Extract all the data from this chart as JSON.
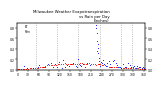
{
  "title": "Milwaukee Weather Evapotranspiration\nvs Rain per Day\n(Inches)",
  "title_fontsize": 2.8,
  "background_color": "#ffffff",
  "xlim": [
    0,
    365
  ],
  "ylim": [
    0,
    0.9
  ],
  "vline_positions": [
    52,
    113,
    174,
    235,
    296,
    327
  ],
  "legend_labels": [
    "ET",
    "Rain"
  ],
  "legend_colors": [
    "red",
    "blue"
  ],
  "et_data": [
    [
      1,
      0.02
    ],
    [
      3,
      0.02
    ],
    [
      6,
      0.02
    ],
    [
      10,
      0.02
    ],
    [
      15,
      0.02
    ],
    [
      20,
      0.02
    ],
    [
      25,
      0.02
    ],
    [
      30,
      0.02
    ],
    [
      35,
      0.03
    ],
    [
      40,
      0.03
    ],
    [
      45,
      0.03
    ],
    [
      50,
      0.03
    ],
    [
      55,
      0.04
    ],
    [
      60,
      0.04
    ],
    [
      65,
      0.05
    ],
    [
      70,
      0.05
    ],
    [
      75,
      0.06
    ],
    [
      80,
      0.07
    ],
    [
      85,
      0.08
    ],
    [
      90,
      0.09
    ],
    [
      95,
      0.09
    ],
    [
      100,
      0.08
    ],
    [
      105,
      0.09
    ],
    [
      110,
      0.09
    ],
    [
      115,
      0.1
    ],
    [
      120,
      0.1
    ],
    [
      125,
      0.11
    ],
    [
      130,
      0.11
    ],
    [
      135,
      0.12
    ],
    [
      140,
      0.11
    ],
    [
      145,
      0.1
    ],
    [
      150,
      0.1
    ],
    [
      155,
      0.1
    ],
    [
      160,
      0.1
    ],
    [
      165,
      0.11
    ],
    [
      170,
      0.11
    ],
    [
      175,
      0.11
    ],
    [
      180,
      0.12
    ],
    [
      185,
      0.12
    ],
    [
      190,
      0.11
    ],
    [
      195,
      0.11
    ],
    [
      200,
      0.11
    ],
    [
      205,
      0.12
    ],
    [
      210,
      0.11
    ],
    [
      215,
      0.1
    ],
    [
      220,
      0.1
    ],
    [
      225,
      0.09
    ],
    [
      230,
      0.11
    ],
    [
      235,
      0.1
    ],
    [
      240,
      0.09
    ],
    [
      245,
      0.09
    ],
    [
      250,
      0.08
    ],
    [
      255,
      0.07
    ],
    [
      260,
      0.06
    ],
    [
      265,
      0.05
    ],
    [
      270,
      0.05
    ],
    [
      275,
      0.06
    ],
    [
      280,
      0.06
    ],
    [
      285,
      0.05
    ],
    [
      290,
      0.05
    ],
    [
      295,
      0.04
    ],
    [
      300,
      0.04
    ],
    [
      305,
      0.04
    ],
    [
      310,
      0.04
    ],
    [
      315,
      0.04
    ],
    [
      320,
      0.03
    ],
    [
      325,
      0.03
    ],
    [
      330,
      0.03
    ],
    [
      335,
      0.03
    ],
    [
      340,
      0.03
    ],
    [
      345,
      0.03
    ],
    [
      350,
      0.02
    ],
    [
      355,
      0.02
    ],
    [
      360,
      0.02
    ],
    [
      365,
      0.02
    ]
  ],
  "rain_data": [
    [
      18,
      0.07
    ],
    [
      28,
      0.04
    ],
    [
      45,
      0.04
    ],
    [
      58,
      0.06
    ],
    [
      62,
      0.08
    ],
    [
      72,
      0.06
    ],
    [
      80,
      0.05
    ],
    [
      88,
      0.1
    ],
    [
      96,
      0.12
    ],
    [
      102,
      0.06
    ],
    [
      108,
      0.1
    ],
    [
      114,
      0.06
    ],
    [
      120,
      0.15
    ],
    [
      126,
      0.04
    ],
    [
      130,
      0.18
    ],
    [
      136,
      0.06
    ],
    [
      142,
      0.08
    ],
    [
      148,
      0.07
    ],
    [
      154,
      0.1
    ],
    [
      160,
      0.12
    ],
    [
      166,
      0.07
    ],
    [
      170,
      0.05
    ],
    [
      174,
      0.2
    ],
    [
      178,
      0.08
    ],
    [
      182,
      0.07
    ],
    [
      188,
      0.1
    ],
    [
      194,
      0.05
    ],
    [
      200,
      0.12
    ],
    [
      206,
      0.08
    ],
    [
      224,
      0.8
    ],
    [
      225,
      0.85
    ],
    [
      226,
      0.7
    ],
    [
      227,
      0.55
    ],
    [
      228,
      0.35
    ],
    [
      229,
      0.5
    ],
    [
      230,
      0.42
    ],
    [
      231,
      0.32
    ],
    [
      232,
      0.22
    ],
    [
      233,
      0.16
    ],
    [
      234,
      0.1
    ],
    [
      235,
      0.07
    ],
    [
      238,
      0.15
    ],
    [
      241,
      0.12
    ],
    [
      244,
      0.18
    ],
    [
      248,
      0.1
    ],
    [
      252,
      0.07
    ],
    [
      256,
      0.12
    ],
    [
      260,
      0.16
    ],
    [
      264,
      0.1
    ],
    [
      268,
      0.06
    ],
    [
      272,
      0.16
    ],
    [
      276,
      0.18
    ],
    [
      280,
      0.12
    ],
    [
      284,
      0.08
    ],
    [
      288,
      0.06
    ],
    [
      292,
      0.05
    ],
    [
      296,
      0.04
    ],
    [
      302,
      0.1
    ],
    [
      306,
      0.06
    ],
    [
      310,
      0.05
    ],
    [
      316,
      0.12
    ],
    [
      320,
      0.08
    ],
    [
      324,
      0.06
    ],
    [
      330,
      0.06
    ],
    [
      334,
      0.07
    ],
    [
      338,
      0.04
    ],
    [
      342,
      0.07
    ],
    [
      346,
      0.05
    ],
    [
      350,
      0.05
    ],
    [
      354,
      0.04
    ],
    [
      358,
      0.05
    ],
    [
      362,
      0.03
    ]
  ]
}
